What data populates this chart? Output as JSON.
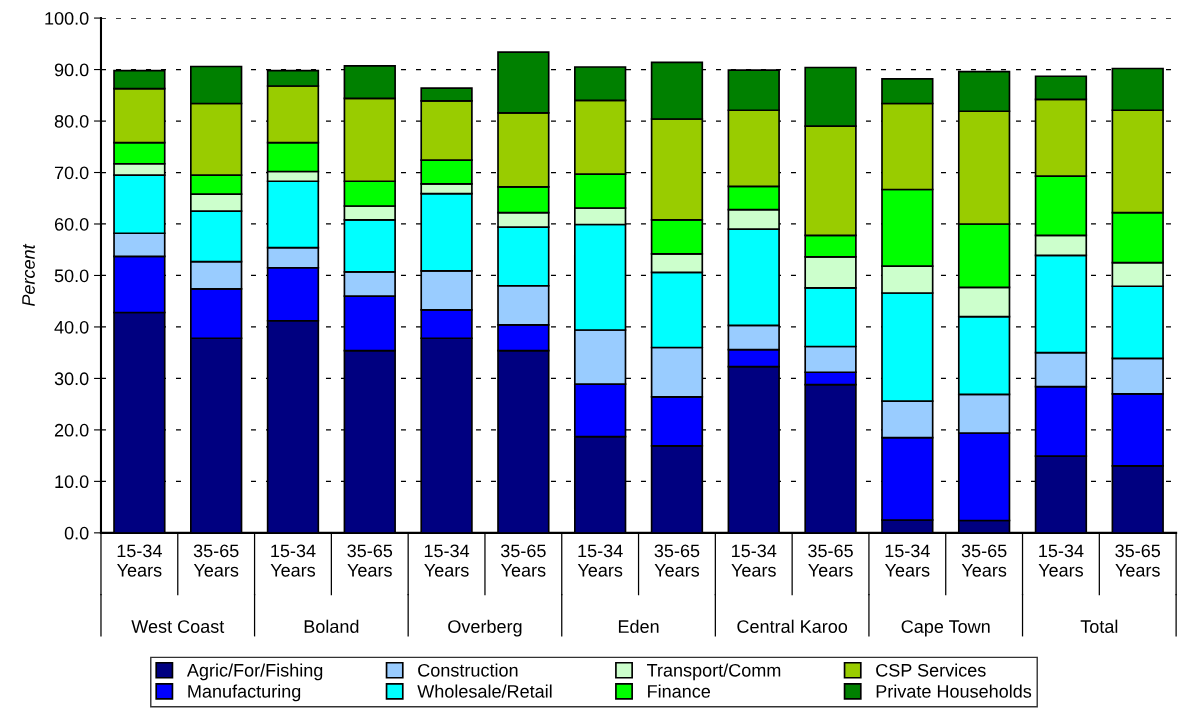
{
  "chart_data": {
    "type": "bar",
    "stacked": true,
    "ylabel": "Percent",
    "categories": [
      "15-34\nYears",
      "35-65\nYears",
      "15-34\nYears",
      "35-65\nYears",
      "15-34\nYears",
      "35-65\nYears",
      "15-34\nYears",
      "35-65\nYears",
      "15-34\nYears",
      "35-65\nYears",
      "15-34\nYears",
      "35-65\nYears",
      "15-34\nYears",
      "35-65\nYears"
    ],
    "annotations": [
      "West Coast",
      "Boland",
      "Overberg",
      "Eden",
      "Central Karoo",
      "Cape Town",
      "Total"
    ],
    "ylim": [
      0,
      100
    ],
    "yticks": [
      {
        "value": 0,
        "label": "0.0"
      },
      {
        "value": 10,
        "label": "10.0"
      },
      {
        "value": 20,
        "label": "20.0"
      },
      {
        "value": 30,
        "label": "30.0"
      },
      {
        "value": 40,
        "label": "40.0"
      },
      {
        "value": 50,
        "label": "50.0"
      },
      {
        "value": 60,
        "label": "60.0"
      },
      {
        "value": 70,
        "label": "70.0"
      },
      {
        "value": 80,
        "label": "80.0"
      },
      {
        "value": 90,
        "label": "90.0"
      },
      {
        "value": 100,
        "label": "100.0"
      }
    ],
    "grid": "y",
    "legend": "bottom",
    "series": [
      {
        "name": "Agric/For/Fishing",
        "color": "#000080",
        "values": [
          42.8,
          37.8,
          41.2,
          35.4,
          37.8,
          35.4,
          18.7,
          16.9,
          32.3,
          28.8,
          2.5,
          2.4,
          14.9,
          13.0
        ]
      },
      {
        "name": "Manufacturing",
        "color": "#0000ff",
        "values": [
          10.9,
          9.6,
          10.3,
          10.6,
          5.5,
          5.0,
          10.2,
          9.5,
          3.3,
          2.4,
          16.0,
          17.0,
          13.5,
          14.0
        ]
      },
      {
        "name": "Construction",
        "color": "#99ccff",
        "values": [
          4.5,
          5.3,
          3.9,
          4.7,
          7.6,
          7.6,
          10.5,
          9.6,
          4.7,
          5.0,
          7.1,
          7.5,
          6.6,
          6.9
        ]
      },
      {
        "name": "Wholesale/Retail",
        "color": "#00ffff",
        "values": [
          11.3,
          9.8,
          12.9,
          10.1,
          15.0,
          11.4,
          20.5,
          14.6,
          18.7,
          11.4,
          21.0,
          15.1,
          18.9,
          14.0
        ]
      },
      {
        "name": "Transport/Comm",
        "color": "#ccffcc",
        "values": [
          2.2,
          3.3,
          1.9,
          2.7,
          1.9,
          2.8,
          3.2,
          3.6,
          3.8,
          6.0,
          5.2,
          5.7,
          3.9,
          4.6
        ]
      },
      {
        "name": "Finance",
        "color": "#00ff00",
        "values": [
          4.1,
          3.7,
          5.6,
          4.8,
          4.6,
          5.0,
          6.6,
          6.6,
          4.5,
          4.2,
          14.9,
          12.3,
          11.5,
          9.7
        ]
      },
      {
        "name": "CSP Services",
        "color": "#99cc00",
        "values": [
          10.5,
          13.9,
          11.0,
          16.1,
          11.5,
          14.4,
          14.3,
          19.6,
          14.8,
          21.2,
          16.7,
          21.9,
          14.9,
          19.9
        ]
      },
      {
        "name": "Private Households",
        "color": "#008000",
        "values": [
          3.5,
          7.2,
          3.0,
          6.3,
          2.5,
          11.8,
          6.5,
          11.0,
          7.8,
          11.4,
          4.8,
          7.7,
          4.5,
          8.1
        ]
      }
    ]
  }
}
